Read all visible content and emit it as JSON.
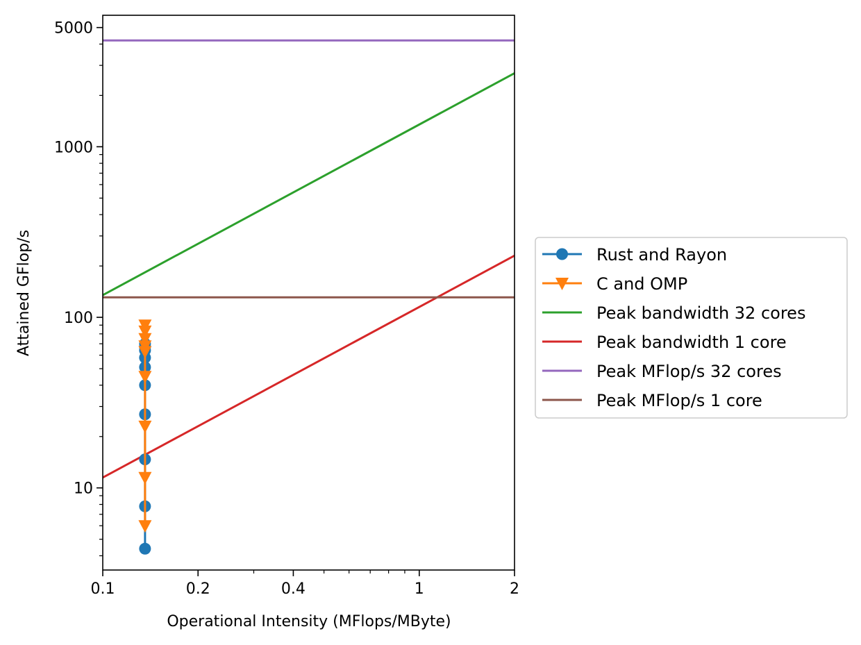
{
  "chart_data": {
    "type": "line",
    "xlabel": "Operational Intensity (MFlops/MByte)",
    "ylabel": "Attained GFlop/s",
    "xscale": "log",
    "yscale": "log",
    "xlim": [
      0.1,
      2
    ],
    "ylim": [
      3.3,
      5900
    ],
    "xticks": [
      {
        "value": 0.1,
        "label": "0.1"
      },
      {
        "value": 0.2,
        "label": "0.2"
      },
      {
        "value": 0.4,
        "label": "0.4"
      },
      {
        "value": 1,
        "label": "1"
      },
      {
        "value": 2,
        "label": "2"
      }
    ],
    "yticks": [
      {
        "value": 10,
        "label": "10"
      },
      {
        "value": 100,
        "label": "100"
      },
      {
        "value": 1000,
        "label": "1000"
      },
      {
        "value": 5000,
        "label": "5000"
      }
    ],
    "grid": false,
    "legend_position": "outside-right",
    "series": [
      {
        "name": "Rust and Rayon",
        "color": "#1f77b4",
        "marker": "circle",
        "points": [
          {
            "x": 0.136,
            "y": 4.4
          },
          {
            "x": 0.136,
            "y": 7.8
          },
          {
            "x": 0.136,
            "y": 14.7
          },
          {
            "x": 0.136,
            "y": 27
          },
          {
            "x": 0.136,
            "y": 40
          },
          {
            "x": 0.136,
            "y": 51
          },
          {
            "x": 0.136,
            "y": 58
          },
          {
            "x": 0.136,
            "y": 64
          },
          {
            "x": 0.136,
            "y": 67
          },
          {
            "x": 0.136,
            "y": 70
          }
        ]
      },
      {
        "name": "C and OMP",
        "color": "#ff7f0e",
        "marker": "triangle-down",
        "points": [
          {
            "x": 0.136,
            "y": 6
          },
          {
            "x": 0.136,
            "y": 11.5
          },
          {
            "x": 0.136,
            "y": 23
          },
          {
            "x": 0.136,
            "y": 45
          },
          {
            "x": 0.136,
            "y": 63
          },
          {
            "x": 0.136,
            "y": 68
          },
          {
            "x": 0.136,
            "y": 75
          },
          {
            "x": 0.136,
            "y": 83
          },
          {
            "x": 0.136,
            "y": 90
          }
        ]
      },
      {
        "name": "Peak bandwidth 32 cores",
        "color": "#2ca02c",
        "marker": "none",
        "points": [
          {
            "x": 0.1,
            "y": 135
          },
          {
            "x": 2,
            "y": 2700
          }
        ]
      },
      {
        "name": "Peak bandwidth 1 core",
        "color": "#d62728",
        "marker": "none",
        "points": [
          {
            "x": 0.1,
            "y": 11.5
          },
          {
            "x": 2,
            "y": 230
          }
        ]
      },
      {
        "name": "Peak MFlop/s 32 cores",
        "color": "#9467bd",
        "marker": "none",
        "points": [
          {
            "x": 0.1,
            "y": 4200
          },
          {
            "x": 2,
            "y": 4200
          }
        ]
      },
      {
        "name": "Peak MFlop/s 1 core",
        "color": "#8c564b",
        "marker": "none",
        "points": [
          {
            "x": 0.1,
            "y": 131
          },
          {
            "x": 2,
            "y": 131
          }
        ]
      }
    ]
  }
}
